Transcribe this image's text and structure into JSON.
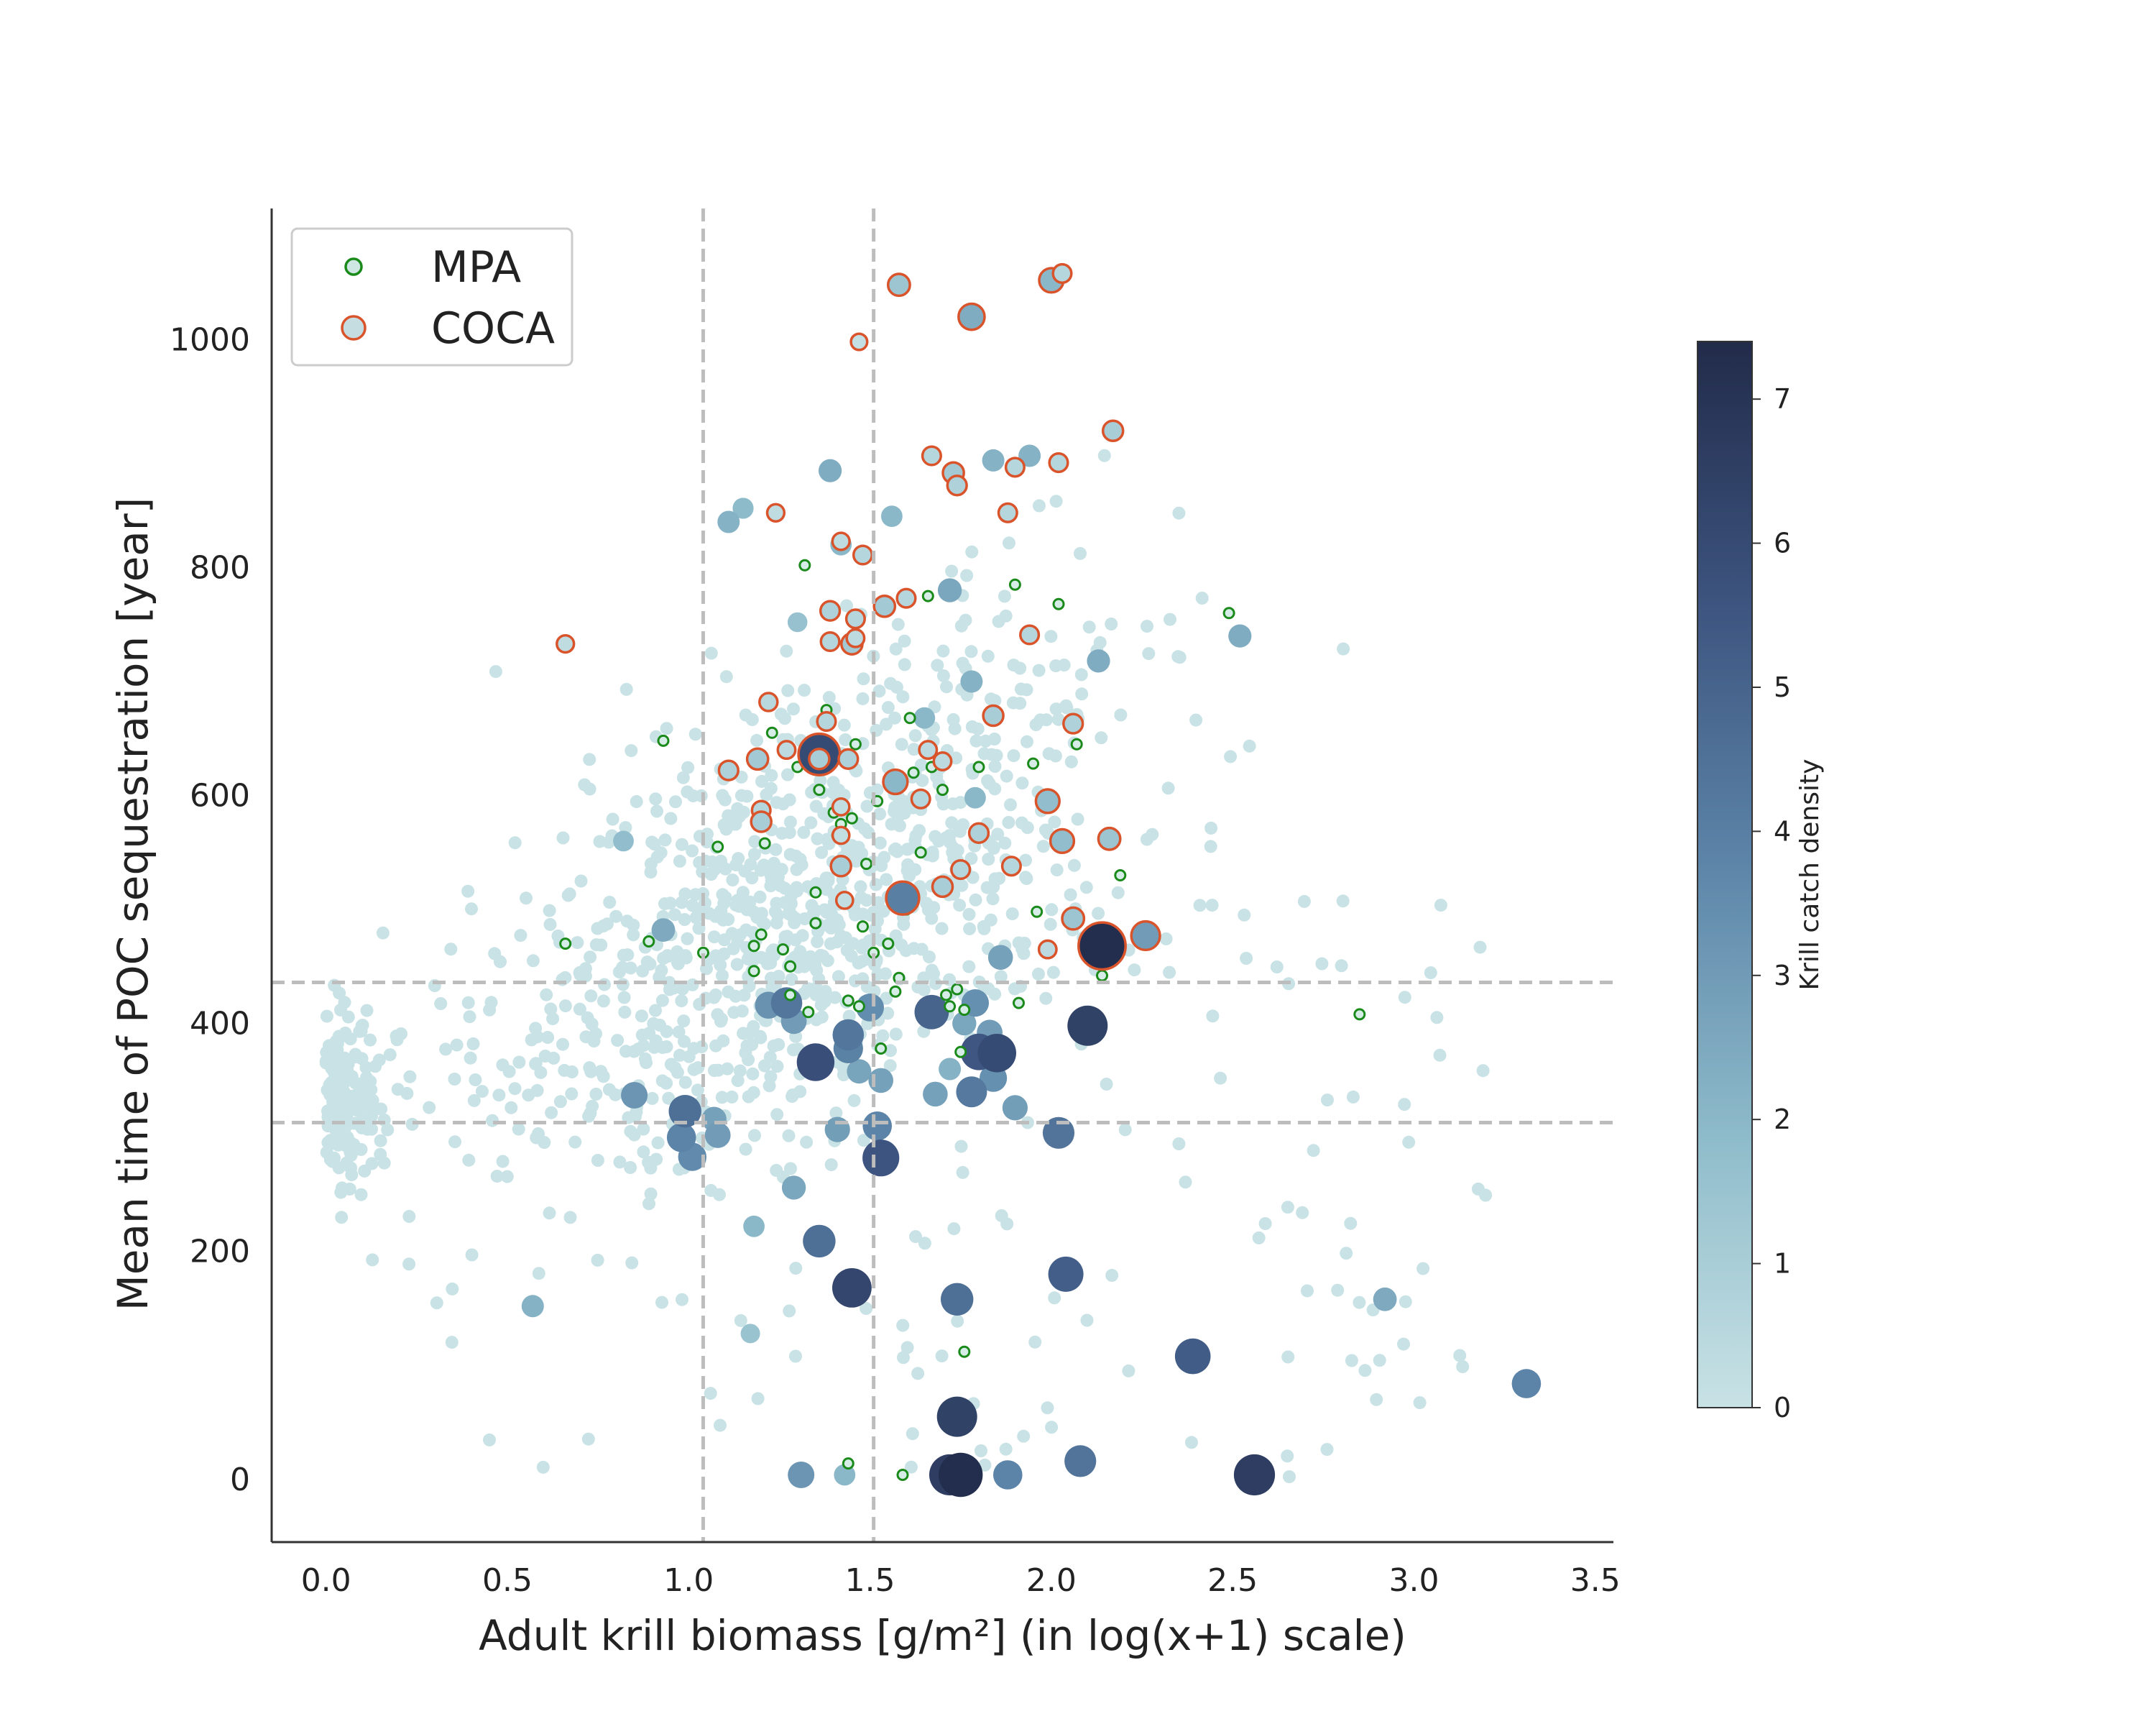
{
  "chart_data": {
    "type": "scatter",
    "xlabel": "Adult krill biomass [g/m²] (in log(x+1) scale)",
    "ylabel": "Mean time of POC sequestration [year]",
    "xlim": [
      -0.15,
      3.55
    ],
    "ylim": [
      -55,
      1115
    ],
    "x_ticks": [
      0.0,
      0.5,
      1.0,
      1.5,
      2.0,
      2.5,
      3.0,
      3.5
    ],
    "x_tick_labels": [
      "0.0",
      "0.5",
      "1.0",
      "1.5",
      "2.0",
      "2.5",
      "3.0",
      "3.5"
    ],
    "y_ticks": [
      0,
      200,
      400,
      600,
      800,
      1000
    ],
    "y_tick_labels": [
      "0",
      "200",
      "400",
      "600",
      "800",
      "1000"
    ],
    "reference_lines": {
      "vertical_x": [
        1.04,
        1.51
      ],
      "horizontal_y": [
        313,
        436
      ],
      "style": "dashed",
      "color": "#bdbdbd"
    },
    "legend": {
      "placement": "upper-left",
      "entries": [
        {
          "label": "MPA",
          "marker": "small circle",
          "edge_color": "#1a8a1a",
          "face_color": "#cfe7e2"
        },
        {
          "label": "COCA",
          "marker": "large circle",
          "edge_color": "#d9532b",
          "face_color": "#c5dde0"
        }
      ]
    },
    "colorbar": {
      "label": "Krill catch density",
      "range": [
        0,
        7.4
      ],
      "ticks": [
        0,
        1,
        2,
        3,
        4,
        5,
        6,
        7
      ],
      "tick_labels": [
        "0",
        "1",
        "2",
        "3",
        "4",
        "5",
        "6",
        "7"
      ],
      "colormap": [
        "#c8e2e5",
        "#8fbccb",
        "#5e87aa",
        "#3d5580",
        "#222b4a"
      ]
    },
    "background_cloud": {
      "description_free_note": "",
      "approx_count": 1300,
      "x_center": 1.35,
      "y_center": 440,
      "color_density": 0
    },
    "fished_points": [
      [
        0.57,
        152,
        2.2
      ],
      [
        0.82,
        560,
        1.8
      ],
      [
        0.85,
        337,
        3.2
      ],
      [
        0.93,
        482,
        2.5
      ],
      [
        0.98,
        300,
        3.8
      ],
      [
        0.99,
        323,
        4.6
      ],
      [
        1.01,
        283,
        3.6
      ],
      [
        1.07,
        316,
        2.8
      ],
      [
        1.08,
        302,
        3.0
      ],
      [
        1.11,
        840,
        2.2
      ],
      [
        1.15,
        852,
        1.9
      ],
      [
        1.17,
        128,
        1.5
      ],
      [
        1.18,
        222,
        2.0
      ],
      [
        1.19,
        632,
        1.2
      ],
      [
        1.22,
        416,
        3.3
      ],
      [
        1.27,
        418,
        4.3
      ],
      [
        1.29,
        402,
        3.0
      ],
      [
        1.29,
        256,
        2.6
      ],
      [
        1.3,
        752,
        1.6
      ],
      [
        1.35,
        366,
        5.8
      ],
      [
        1.36,
        209,
        4.6
      ],
      [
        1.39,
        885,
        2.4
      ],
      [
        1.41,
        307,
        2.9
      ],
      [
        1.42,
        820,
        2.0
      ],
      [
        1.44,
        390,
        4.3
      ],
      [
        1.44,
        378,
        3.9
      ],
      [
        1.45,
        168,
        6.2
      ],
      [
        1.47,
        358,
        2.7
      ],
      [
        1.5,
        414,
        3.5
      ],
      [
        1.52,
        310,
        3.8
      ],
      [
        1.53,
        282,
        5.6
      ],
      [
        1.53,
        350,
        2.8
      ],
      [
        1.56,
        845,
        2.0
      ],
      [
        1.67,
        410,
        5.0
      ],
      [
        1.68,
        338,
        2.8
      ],
      [
        1.72,
        360,
        2.2
      ],
      [
        1.74,
        158,
        4.6
      ],
      [
        1.74,
        55,
        6.4
      ],
      [
        1.75,
        4,
        7.3
      ],
      [
        1.76,
        400,
        2.6
      ],
      [
        1.78,
        340,
        4.2
      ],
      [
        1.79,
        418,
        3.4
      ],
      [
        1.8,
        375,
        5.5
      ],
      [
        1.83,
        392,
        3.0
      ],
      [
        1.84,
        352,
        3.4
      ],
      [
        1.85,
        374,
        6.0
      ],
      [
        1.86,
        458,
        2.8
      ],
      [
        1.88,
        4,
        3.8
      ],
      [
        1.9,
        326,
        2.9
      ],
      [
        1.84,
        894,
        2.2
      ],
      [
        1.94,
        898,
        2.2
      ],
      [
        2.02,
        304,
        4.4
      ],
      [
        2.04,
        180,
        5.2
      ],
      [
        2.08,
        16,
        4.4
      ],
      [
        2.1,
        398,
        6.4
      ],
      [
        2.13,
        718,
        2.4
      ],
      [
        2.39,
        108,
        5.3
      ],
      [
        2.52,
        740,
        2.4
      ],
      [
        2.56,
        4,
        6.6
      ],
      [
        2.92,
        158,
        2.5
      ],
      [
        3.31,
        84,
        3.8
      ],
      [
        1.31,
        4,
        3.2
      ],
      [
        1.43,
        4,
        2.0
      ],
      [
        1.72,
        4,
        6.6
      ],
      [
        1.78,
        700,
        2.2
      ],
      [
        1.79,
        598,
        2.0
      ],
      [
        1.65,
        668,
        2.0
      ],
      [
        1.72,
        780,
        2.6
      ]
    ],
    "mpa_points": [
      [
        0.66,
        470
      ],
      [
        0.89,
        472
      ],
      [
        0.93,
        648
      ],
      [
        1.04,
        462
      ],
      [
        1.08,
        555
      ],
      [
        1.18,
        446
      ],
      [
        1.18,
        468
      ],
      [
        1.2,
        478
      ],
      [
        1.21,
        558
      ],
      [
        1.23,
        655
      ],
      [
        1.26,
        465
      ],
      [
        1.28,
        450
      ],
      [
        1.28,
        425
      ],
      [
        1.3,
        625
      ],
      [
        1.32,
        802
      ],
      [
        1.33,
        410
      ],
      [
        1.35,
        515
      ],
      [
        1.35,
        488
      ],
      [
        1.36,
        605
      ],
      [
        1.37,
        640
      ],
      [
        1.38,
        675
      ],
      [
        1.39,
        645
      ],
      [
        1.4,
        585
      ],
      [
        1.41,
        565
      ],
      [
        1.42,
        575
      ],
      [
        1.44,
        420
      ],
      [
        1.45,
        580
      ],
      [
        1.46,
        645
      ],
      [
        1.47,
        415
      ],
      [
        1.48,
        485
      ],
      [
        1.49,
        540
      ],
      [
        1.51,
        462
      ],
      [
        1.52,
        595
      ],
      [
        1.53,
        378
      ],
      [
        1.55,
        470
      ],
      [
        1.57,
        428
      ],
      [
        1.58,
        440
      ],
      [
        1.6,
        500
      ],
      [
        1.61,
        668
      ],
      [
        1.62,
        620
      ],
      [
        1.64,
        550
      ],
      [
        1.66,
        775
      ],
      [
        1.67,
        625
      ],
      [
        1.7,
        605
      ],
      [
        1.71,
        425
      ],
      [
        1.72,
        415
      ],
      [
        1.74,
        430
      ],
      [
        1.75,
        375
      ],
      [
        1.76,
        412
      ],
      [
        1.8,
        625
      ],
      [
        1.9,
        785
      ],
      [
        1.91,
        418
      ],
      [
        1.95,
        628
      ],
      [
        1.96,
        498
      ],
      [
        2.02,
        768
      ],
      [
        2.07,
        645
      ],
      [
        2.14,
        442
      ],
      [
        2.19,
        530
      ],
      [
        2.49,
        760
      ],
      [
        2.85,
        408
      ],
      [
        1.76,
        112
      ],
      [
        1.44,
        14
      ],
      [
        1.59,
        4
      ]
    ],
    "coca_points": [
      [
        0.66,
        733,
        0.3
      ],
      [
        1.11,
        622,
        0.8
      ],
      [
        1.19,
        632,
        1.2
      ],
      [
        1.2,
        587,
        0.6
      ],
      [
        1.2,
        577,
        1.0
      ],
      [
        1.22,
        682,
        0.5
      ],
      [
        1.24,
        848,
        0.3
      ],
      [
        1.27,
        640,
        0.4
      ],
      [
        1.36,
        636,
        6.0
      ],
      [
        1.36,
        632,
        1.0
      ],
      [
        1.38,
        665,
        0.6
      ],
      [
        1.39,
        762,
        0.8
      ],
      [
        1.39,
        735,
        0.6
      ],
      [
        1.42,
        823,
        0.3
      ],
      [
        1.42,
        590,
        0.2
      ],
      [
        1.42,
        565,
        0.2
      ],
      [
        1.42,
        538,
        1.0
      ],
      [
        1.43,
        508,
        0.2
      ],
      [
        1.44,
        632,
        0.8
      ],
      [
        1.45,
        733,
        1.2
      ],
      [
        1.46,
        755,
        0.6
      ],
      [
        1.46,
        738,
        0.4
      ],
      [
        1.47,
        998,
        0.1
      ],
      [
        1.48,
        811,
        0.6
      ],
      [
        1.54,
        766,
        1.2
      ],
      [
        1.57,
        612,
        2.0
      ],
      [
        1.58,
        1048,
        1.4
      ],
      [
        1.58,
        508,
        1.4
      ],
      [
        1.59,
        510,
        4.0
      ],
      [
        1.6,
        773,
        0.6
      ],
      [
        1.64,
        597,
        0.6
      ],
      [
        1.66,
        640,
        0.4
      ],
      [
        1.67,
        898,
        0.6
      ],
      [
        1.7,
        630,
        0.4
      ],
      [
        1.7,
        520,
        1.0
      ],
      [
        1.73,
        883,
        1.2
      ],
      [
        1.74,
        872,
        0.8
      ],
      [
        1.75,
        535,
        0.6
      ],
      [
        1.78,
        1020,
        2.4
      ],
      [
        1.8,
        567,
        0.8
      ],
      [
        1.84,
        670,
        1.0
      ],
      [
        1.88,
        848,
        0.6
      ],
      [
        1.89,
        538,
        0.6
      ],
      [
        1.9,
        888,
        0.6
      ],
      [
        1.94,
        741,
        0.6
      ],
      [
        1.99,
        595,
        1.8
      ],
      [
        1.99,
        465,
        0.4
      ],
      [
        2.0,
        1052,
        2.0
      ],
      [
        2.02,
        892,
        0.6
      ],
      [
        2.03,
        1058,
        0.6
      ],
      [
        2.03,
        560,
        1.8
      ],
      [
        2.06,
        663,
        0.8
      ],
      [
        2.06,
        492,
        1.4
      ],
      [
        2.14,
        468,
        7.3
      ],
      [
        2.16,
        562,
        1.4
      ],
      [
        2.17,
        920,
        1.0
      ],
      [
        2.26,
        477,
        3.0
      ]
    ]
  }
}
